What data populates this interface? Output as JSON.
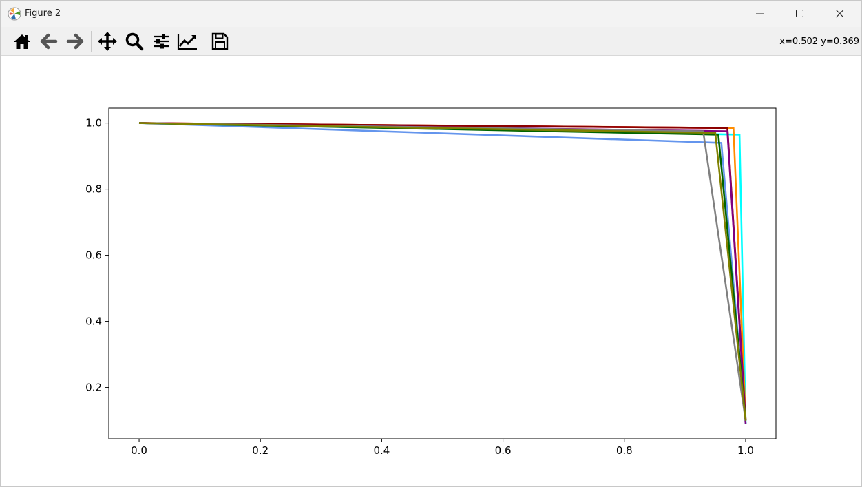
{
  "window": {
    "title": "Figure 2",
    "controls": {
      "minimize": "minimize",
      "maximize": "maximize",
      "close": "close"
    }
  },
  "toolbar": {
    "buttons": [
      {
        "name": "home-button",
        "icon": "home-icon"
      },
      {
        "name": "back-button",
        "icon": "arrow-left-icon"
      },
      {
        "name": "forward-button",
        "icon": "arrow-right-icon"
      },
      {
        "name": "pan-button",
        "icon": "move-icon"
      },
      {
        "name": "zoom-button",
        "icon": "magnifier-icon"
      },
      {
        "name": "subplots-button",
        "icon": "sliders-icon"
      },
      {
        "name": "edit-axis-button",
        "icon": "trend-line-icon"
      },
      {
        "name": "save-button",
        "icon": "floppy-disk-icon"
      }
    ],
    "coordinates": "x=0.502 y=0.369"
  },
  "chart_data": {
    "type": "line",
    "title": "",
    "xlabel": "",
    "ylabel": "",
    "xlim": [
      -0.05,
      1.05
    ],
    "ylim": [
      0.045,
      1.045
    ],
    "xticks": [
      "0.0",
      "0.2",
      "0.4",
      "0.6",
      "0.8",
      "1.0"
    ],
    "yticks": [
      "0.2",
      "0.4",
      "0.6",
      "0.8",
      "1.0"
    ],
    "grid": false,
    "series": [
      {
        "color": "#6495ed",
        "x": [
          0.0,
          0.96,
          1.0
        ],
        "y": [
          1.0,
          0.94,
          0.09
        ]
      },
      {
        "color": "#00ffff",
        "x": [
          0.0,
          0.99,
          1.0
        ],
        "y": [
          1.0,
          0.965,
          0.09
        ]
      },
      {
        "color": "#ff8c00",
        "x": [
          0.0,
          0.98,
          1.0
        ],
        "y": [
          1.0,
          0.985,
          0.1
        ]
      },
      {
        "color": "#dc143c",
        "x": [
          0.0,
          0.97,
          1.0
        ],
        "y": [
          1.0,
          0.985,
          0.1
        ]
      },
      {
        "color": "#ff69b4",
        "x": [
          0.0,
          0.97,
          1.0
        ],
        "y": [
          1.0,
          0.975,
          0.1
        ]
      },
      {
        "color": "#8b0000",
        "x": [
          0.0,
          0.97,
          1.0
        ],
        "y": [
          1.0,
          0.985,
          0.1
        ]
      },
      {
        "color": "#800080",
        "x": [
          0.0,
          0.97,
          1.0
        ],
        "y": [
          1.0,
          0.975,
          0.09
        ]
      },
      {
        "color": "#006400",
        "x": [
          0.0,
          0.955,
          1.0
        ],
        "y": [
          1.0,
          0.965,
          0.1
        ]
      },
      {
        "color": "#808080",
        "x": [
          0.0,
          0.93,
          1.0
        ],
        "y": [
          1.0,
          0.975,
          0.1
        ]
      },
      {
        "color": "#808000",
        "x": [
          0.0,
          0.95,
          1.0
        ],
        "y": [
          1.0,
          0.97,
          0.1
        ]
      }
    ]
  }
}
